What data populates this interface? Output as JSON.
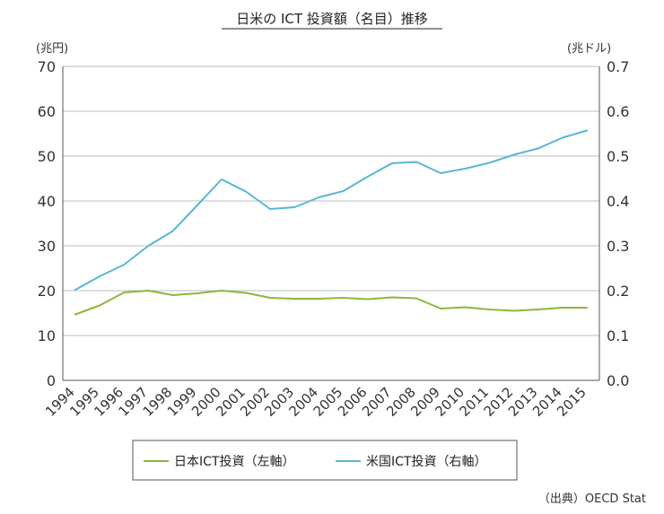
{
  "chart_data": {
    "type": "line",
    "title": "日米の ICT 投資額（名目）推移",
    "left_axis_unit": "(兆円)",
    "right_axis_unit": "(兆ドル)",
    "categories": [
      "1994",
      "1995",
      "1996",
      "1997",
      "1998",
      "1999",
      "2000",
      "2001",
      "2002",
      "2003",
      "2004",
      "2005",
      "2006",
      "2007",
      "2008",
      "2009",
      "2010",
      "2011",
      "2012",
      "2013",
      "2014",
      "2015"
    ],
    "left_axis": {
      "ylim": [
        0,
        70
      ],
      "ticks": [
        "0",
        "10",
        "20",
        "30",
        "40",
        "50",
        "60",
        "70"
      ]
    },
    "right_axis": {
      "ylim": [
        0,
        0.7
      ],
      "ticks": [
        "0.0",
        "0.1",
        "0.2",
        "0.3",
        "0.4",
        "0.5",
        "0.6",
        "0.7"
      ]
    },
    "grid": true,
    "series": [
      {
        "name": "日本ICT投資（左軸）",
        "axis": "left",
        "color": "#8db63c",
        "values": [
          14.7,
          16.7,
          19.6,
          20.0,
          19.0,
          19.4,
          20.0,
          19.5,
          18.4,
          18.2,
          18.2,
          18.4,
          18.1,
          18.5,
          18.3,
          16.0,
          16.3,
          15.8,
          15.5,
          15.8,
          16.2,
          16.2
        ]
      },
      {
        "name": "米国ICT投資（右軸）",
        "axis": "right",
        "color": "#55b7d6",
        "values": [
          0.202,
          0.232,
          0.258,
          0.3,
          0.333,
          0.39,
          0.448,
          0.421,
          0.382,
          0.386,
          0.408,
          0.422,
          0.454,
          0.484,
          0.487,
          0.462,
          0.472,
          0.485,
          0.503,
          0.517,
          0.541,
          0.557
        ]
      }
    ],
    "legend_position": "bottom",
    "source": "（出典）OECD Stat"
  }
}
